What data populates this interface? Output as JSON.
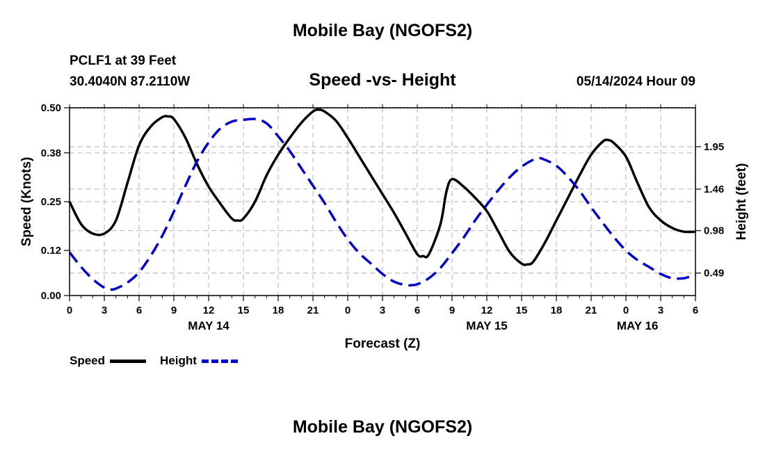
{
  "header": {
    "title": "Mobile Bay (NGOFS2)",
    "station": "PCLF1 at 39 Feet",
    "coords": "30.4040N  87.2110W",
    "subtitle": "Speed -vs- Height",
    "datetime": "05/14/2024 Hour 09"
  },
  "footer": {
    "title": "Mobile Bay (NGOFS2)"
  },
  "legend": {
    "items": [
      {
        "label": "Speed",
        "color": "#000000",
        "style": "solid"
      },
      {
        "label": "Height",
        "color": "#0000cc",
        "style": "dashed"
      }
    ]
  },
  "chart_data": {
    "type": "line",
    "title": "Speed -vs- Height",
    "xlabel": "Forecast (Z)",
    "ylabel": "Speed (Knots)",
    "y2label": "Height (feet)",
    "x_hours_range": [
      0,
      54
    ],
    "ylim": [
      0,
      0.5
    ],
    "y2lim": [
      0.23,
      2.4
    ],
    "x_tick_labels": [
      "0",
      "3",
      "6",
      "9",
      "12",
      "15",
      "18",
      "21",
      "0",
      "3",
      "6",
      "9",
      "12",
      "15",
      "18",
      "21",
      "0",
      "3",
      "6"
    ],
    "date_labels": [
      {
        "label": "MAY 14",
        "hour": 12
      },
      {
        "label": "MAY 15",
        "hour": 36
      },
      {
        "label": "MAY 16",
        "hour": 49
      }
    ],
    "y_ticks": [
      0.0,
      0.12,
      0.25,
      0.38,
      0.5
    ],
    "y_tick_labels": [
      "0.00",
      "0.12",
      "0.25",
      "0.38",
      "0.50"
    ],
    "y2_ticks": [
      0.49,
      0.98,
      1.46,
      1.95
    ],
    "y2_tick_labels": [
      "0.49",
      "0.98",
      "1.46",
      "1.95"
    ],
    "grid": true,
    "legend_position": "bottom-left",
    "series": [
      {
        "name": "Speed",
        "axis": "left",
        "color": "#000000",
        "style": "solid",
        "x": [
          0,
          1,
          2,
          3,
          4,
          5,
          6,
          7,
          8,
          8.5,
          9,
          10,
          11,
          12,
          13,
          14,
          14.5,
          15,
          16,
          17,
          18,
          19,
          20,
          21,
          21.5,
          22,
          23,
          24,
          25,
          26,
          27,
          28,
          29,
          30,
          30.5,
          31,
          32,
          32.5,
          33,
          34,
          35,
          36,
          37,
          38,
          39,
          39.5,
          40,
          41,
          42,
          43,
          44,
          45,
          46,
          46.5,
          47,
          48,
          49,
          50,
          51,
          52,
          53,
          54
        ],
        "y": [
          0.25,
          0.19,
          0.165,
          0.165,
          0.2,
          0.3,
          0.4,
          0.45,
          0.475,
          0.477,
          0.47,
          0.42,
          0.35,
          0.29,
          0.245,
          0.205,
          0.2,
          0.205,
          0.25,
          0.32,
          0.375,
          0.42,
          0.46,
          0.49,
          0.495,
          0.49,
          0.465,
          0.42,
          0.37,
          0.32,
          0.27,
          0.22,
          0.165,
          0.11,
          0.105,
          0.11,
          0.19,
          0.275,
          0.31,
          0.29,
          0.26,
          0.225,
          0.17,
          0.115,
          0.085,
          0.083,
          0.09,
          0.14,
          0.2,
          0.26,
          0.32,
          0.375,
          0.41,
          0.414,
          0.405,
          0.37,
          0.3,
          0.235,
          0.2,
          0.18,
          0.17,
          0.17
        ]
      },
      {
        "name": "Height",
        "axis": "right",
        "color": "#0000cc",
        "style": "dashed",
        "x": [
          0,
          1,
          2,
          3,
          3.5,
          4,
          5,
          6,
          7,
          8,
          9,
          10,
          11,
          12,
          13,
          14,
          15,
          16,
          17,
          18,
          19,
          20,
          21,
          22,
          23,
          24,
          25,
          26,
          27,
          28,
          29,
          29.5,
          30,
          31,
          32,
          33,
          34,
          35,
          36,
          37,
          38,
          39,
          40,
          40.5,
          41,
          42,
          43,
          44,
          45,
          46,
          47,
          48,
          49,
          50,
          51,
          52,
          53,
          53.5,
          54
        ],
        "y": [
          0.73,
          0.56,
          0.42,
          0.32,
          0.3,
          0.31,
          0.38,
          0.5,
          0.69,
          0.92,
          1.2,
          1.5,
          1.78,
          2.0,
          2.16,
          2.24,
          2.26,
          2.27,
          2.22,
          2.07,
          1.9,
          1.7,
          1.5,
          1.3,
          1.08,
          0.88,
          0.72,
          0.6,
          0.48,
          0.39,
          0.35,
          0.35,
          0.36,
          0.43,
          0.55,
          0.72,
          0.9,
          1.1,
          1.28,
          1.45,
          1.6,
          1.72,
          1.8,
          1.82,
          1.8,
          1.73,
          1.6,
          1.44,
          1.25,
          1.07,
          0.9,
          0.75,
          0.64,
          0.56,
          0.48,
          0.43,
          0.43,
          0.45,
          0.47
        ]
      }
    ]
  }
}
